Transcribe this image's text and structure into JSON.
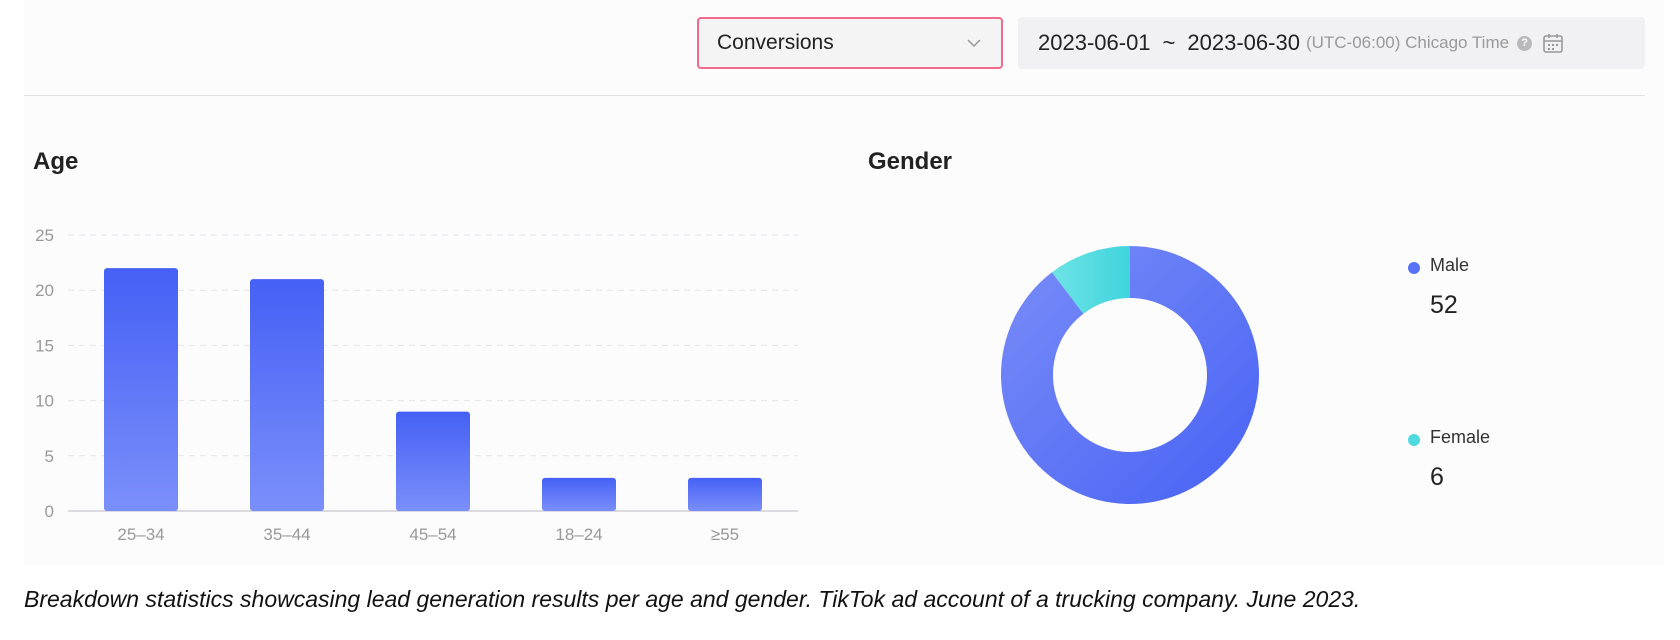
{
  "toolbar": {
    "metric": "Conversions",
    "date_start": "2023-06-01",
    "date_sep": "~",
    "date_end": "2023-06-30",
    "timezone": "(UTC-06:00) Chicago Time",
    "help_icon": "question-circle-icon",
    "calendar_icon": "calendar-icon"
  },
  "colors": {
    "bar_top": "#4560f5",
    "bar_bottom": "#7b8ffa",
    "male": "#5872f6",
    "female": "#4fd9df",
    "select_border": "#f06a8c"
  },
  "chart_data": [
    {
      "type": "bar",
      "title": "Age",
      "categories": [
        "25–34",
        "35–44",
        "45–54",
        "18–24",
        "≥55"
      ],
      "values": [
        22,
        21,
        9,
        3,
        3
      ],
      "ylim": [
        0,
        25
      ],
      "yticks": [
        0,
        5,
        10,
        15,
        20,
        25
      ],
      "grid": true
    },
    {
      "type": "pie",
      "title": "Gender",
      "donut": true,
      "labels": [
        "Male",
        "Female"
      ],
      "values": [
        52,
        6
      ],
      "legend": "right"
    }
  ],
  "caption": "Breakdown statistics showcasing lead generation results per age and gender. TikTok ad account of a trucking company. June 2023."
}
